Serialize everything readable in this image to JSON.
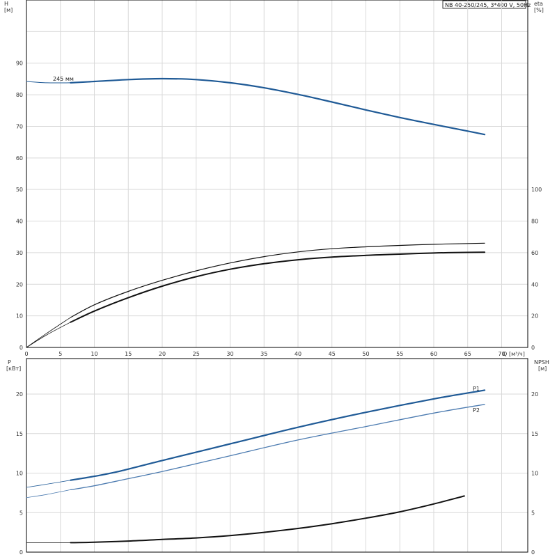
{
  "colors": {
    "blue": "#1f5a96",
    "blue_light": "#4c7bb0",
    "black": "#111111",
    "grid": "#d9d9d9"
  },
  "header": {
    "pump_model": "NB 40-250/245, 3*400 V, 50Hz"
  },
  "chart_data": [
    {
      "type": "line",
      "x_axis": {
        "label": "Q",
        "unit": "[м³/ч]",
        "ticks": [
          0,
          5,
          10,
          15,
          20,
          25,
          30,
          35,
          40,
          45,
          50,
          55,
          60,
          65,
          70
        ],
        "range": [
          0,
          70
        ]
      },
      "y_axis_left": {
        "label": "H",
        "unit": "[м]",
        "ticks": [
          0,
          10,
          20,
          30,
          40,
          50,
          60,
          70,
          80,
          90
        ],
        "range": [
          0,
          110
        ]
      },
      "y_axis_right": {
        "label": "eta",
        "unit": "[%]",
        "ticks": [
          0,
          20,
          40,
          60,
          80,
          100
        ],
        "range": [
          0,
          220
        ]
      },
      "annotation": "245 мм",
      "series": [
        {
          "axis": "left",
          "color": "blue",
          "width": 2.2,
          "points": [
            [
              6.5,
              83.8
            ],
            [
              10,
              84.2
            ],
            [
              15,
              84.8
            ],
            [
              20,
              85.1
            ],
            [
              25,
              84.8
            ],
            [
              30,
              83.8
            ],
            [
              35,
              82.2
            ],
            [
              40,
              80.1
            ],
            [
              45,
              77.7
            ],
            [
              50,
              75.2
            ],
            [
              55,
              72.8
            ],
            [
              60,
              70.6
            ],
            [
              65,
              68.5
            ],
            [
              67.5,
              67.4
            ]
          ]
        },
        {
          "axis": "left",
          "color": "blue",
          "width": 1.0,
          "points": [
            [
              0,
              84.2
            ],
            [
              3,
              83.8
            ],
            [
              6.5,
              83.8
            ]
          ]
        },
        {
          "axis": "right",
          "color": "black",
          "width": 1.2,
          "points": [
            [
              6.5,
              19
            ],
            [
              10,
              27
            ],
            [
              15,
              35.5
            ],
            [
              20,
              42.5
            ],
            [
              25,
              48.5
            ],
            [
              30,
              53.5
            ],
            [
              35,
              57.5
            ],
            [
              40,
              60.5
            ],
            [
              45,
              62.5
            ],
            [
              50,
              63.7
            ],
            [
              55,
              64.6
            ],
            [
              60,
              65.3
            ],
            [
              65,
              65.8
            ],
            [
              67.5,
              66
            ]
          ]
        },
        {
          "axis": "right",
          "color": "black",
          "width": 2.0,
          "points": [
            [
              6.5,
              16
            ],
            [
              10,
              23
            ],
            [
              15,
              31.5
            ],
            [
              20,
              38.8
            ],
            [
              25,
              44.8
            ],
            [
              30,
              49.5
            ],
            [
              35,
              53
            ],
            [
              40,
              55.5
            ],
            [
              45,
              57.2
            ],
            [
              50,
              58.3
            ],
            [
              55,
              59.1
            ],
            [
              60,
              59.8
            ],
            [
              65,
              60.2
            ],
            [
              67.5,
              60.3
            ]
          ]
        },
        {
          "axis": "right",
          "color": "black",
          "width": 0.8,
          "points": [
            [
              0,
              0
            ],
            [
              3,
              9
            ],
            [
              6.5,
              19
            ]
          ]
        },
        {
          "axis": "right",
          "color": "black",
          "width": 0.8,
          "points": [
            [
              0,
              0
            ],
            [
              3,
              8
            ],
            [
              6.5,
              16
            ]
          ]
        }
      ]
    },
    {
      "type": "line",
      "y_axis_left": {
        "label": "P",
        "unit": "[кВт]",
        "ticks": [
          0,
          5,
          10,
          15,
          20
        ],
        "range": [
          0,
          24.5
        ]
      },
      "y_axis_right": {
        "label": "NPSH",
        "unit": "[м]",
        "ticks": [
          0,
          5,
          10,
          15,
          20
        ],
        "range": [
          0,
          24.5
        ]
      },
      "series": [
        {
          "name": "P1",
          "axis": "left",
          "color": "blue",
          "width": 2.2,
          "points": [
            [
              6.5,
              9.1
            ],
            [
              10,
              9.6
            ],
            [
              13.5,
              10.2
            ],
            [
              20,
              11.6
            ],
            [
              30,
              13.7
            ],
            [
              40,
              15.8
            ],
            [
              50,
              17.7
            ],
            [
              60,
              19.4
            ],
            [
              67.5,
              20.5
            ]
          ]
        },
        {
          "name": "P2",
          "axis": "left",
          "color": "blue_light",
          "width": 1.3,
          "points": [
            [
              6.5,
              7.9
            ],
            [
              10,
              8.4
            ],
            [
              15,
              9.3
            ],
            [
              20,
              10.2
            ],
            [
              30,
              12.2
            ],
            [
              40,
              14.2
            ],
            [
              50,
              15.9
            ],
            [
              60,
              17.6
            ],
            [
              67.5,
              18.7
            ]
          ]
        },
        {
          "axis": "left",
          "color": "blue",
          "width": 0.8,
          "points": [
            [
              0,
              8.2
            ],
            [
              3,
              8.6
            ],
            [
              6.5,
              9.1
            ]
          ]
        },
        {
          "axis": "left",
          "color": "blue_light",
          "width": 0.8,
          "points": [
            [
              0,
              6.9
            ],
            [
              3,
              7.3
            ],
            [
              6.5,
              7.9
            ]
          ]
        },
        {
          "axis": "right",
          "color": "black",
          "width": 2.0,
          "points": [
            [
              6.5,
              1.2
            ],
            [
              10,
              1.25
            ],
            [
              15,
              1.4
            ],
            [
              20,
              1.6
            ],
            [
              25,
              1.8
            ],
            [
              30,
              2.1
            ],
            [
              35,
              2.5
            ],
            [
              40,
              3.0
            ],
            [
              45,
              3.6
            ],
            [
              50,
              4.3
            ],
            [
              55,
              5.1
            ],
            [
              60,
              6.1
            ],
            [
              64.5,
              7.1
            ]
          ]
        },
        {
          "axis": "right",
          "color": "black",
          "width": 0.8,
          "points": [
            [
              0,
              1.2
            ],
            [
              6.5,
              1.2
            ]
          ]
        }
      ]
    }
  ]
}
